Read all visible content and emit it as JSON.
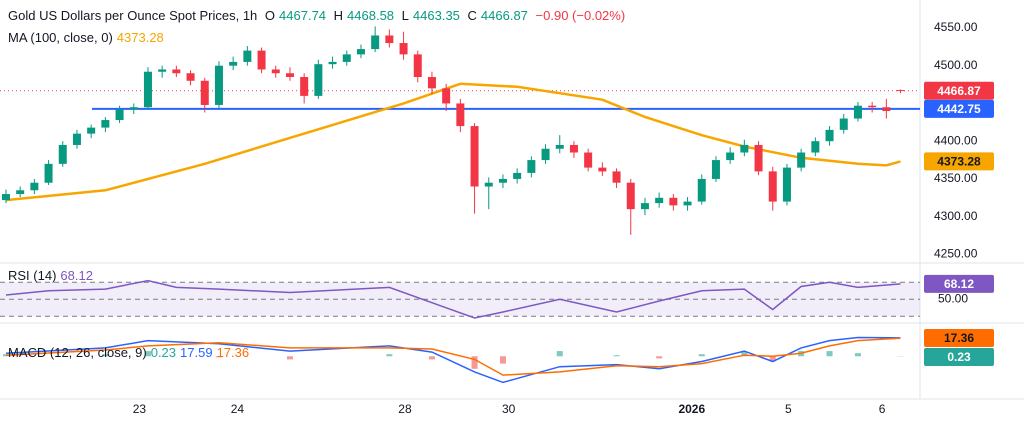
{
  "chart_data": [
    {
      "type": "candlestick",
      "title": "Gold US Dollars per Ounce Spot Prices, 1h",
      "ohlc_labels": [
        "O",
        "H",
        "L",
        "C"
      ],
      "change": "−0.90 (−0.02%)",
      "up_color": "#089981",
      "down_color": "#f23645",
      "open": [
        4322,
        4330,
        4335,
        4345,
        4370,
        4395,
        4410,
        4418,
        4428,
        4442,
        4445,
        4492,
        4495,
        4490,
        4480,
        4448,
        4500,
        4505,
        4520,
        4495,
        4490,
        4485,
        4460,
        4502,
        4505,
        4515,
        4522,
        4540,
        4530,
        4515,
        4485,
        4470,
        4450,
        4420,
        4340,
        4345,
        4350,
        4358,
        4375,
        4390,
        4395,
        4385,
        4365,
        4360,
        4345,
        4310,
        4318,
        4325,
        4315,
        4320,
        4350,
        4375,
        4385,
        4395,
        4360,
        4320,
        4365,
        4385,
        4400,
        4415,
        4430,
        4447,
        4445,
        4467.74
      ],
      "high": [
        4336,
        4340,
        4350,
        4375,
        4400,
        4415,
        4422,
        4432,
        4447,
        4450,
        4498,
        4500,
        4500,
        4494,
        4484,
        4506,
        4512,
        4526,
        4524,
        4500,
        4498,
        4490,
        4508,
        4512,
        4520,
        4528,
        4552,
        4548,
        4545,
        4520,
        4492,
        4476,
        4456,
        4424,
        4352,
        4356,
        4364,
        4380,
        4396,
        4408,
        4400,
        4390,
        4372,
        4364,
        4350,
        4325,
        4332,
        4330,
        4326,
        4356,
        4380,
        4392,
        4402,
        4400,
        4366,
        4370,
        4390,
        4405,
        4420,
        4436,
        4452,
        4452,
        4456,
        4468.58
      ],
      "low": [
        4318,
        4326,
        4330,
        4342,
        4366,
        4390,
        4404,
        4412,
        4424,
        4436,
        4442,
        4484,
        4485,
        4474,
        4438,
        4444,
        4494,
        4500,
        4490,
        4484,
        4480,
        4450,
        4456,
        4496,
        4500,
        4510,
        4518,
        4524,
        4508,
        4478,
        4462,
        4440,
        4412,
        4304,
        4310,
        4338,
        4344,
        4352,
        4370,
        4384,
        4378,
        4360,
        4354,
        4338,
        4276,
        4302,
        4312,
        4308,
        4308,
        4316,
        4346,
        4370,
        4380,
        4355,
        4308,
        4315,
        4360,
        4380,
        4394,
        4410,
        4426,
        4438,
        4430,
        4463.35
      ],
      "close": [
        4330,
        4335,
        4345,
        4370,
        4395,
        4410,
        4418,
        4428,
        4442,
        4445,
        4492,
        4495,
        4490,
        4480,
        4448,
        4500,
        4505,
        4520,
        4495,
        4490,
        4485,
        4460,
        4502,
        4505,
        4515,
        4522,
        4540,
        4530,
        4515,
        4485,
        4470,
        4450,
        4420,
        4340,
        4345,
        4350,
        4358,
        4375,
        4390,
        4395,
        4385,
        4365,
        4360,
        4345,
        4310,
        4318,
        4325,
        4315,
        4320,
        4350,
        4375,
        4385,
        4395,
        4360,
        4320,
        4365,
        4385,
        4400,
        4415,
        4430,
        4447,
        4445,
        4440,
        4466.87
      ],
      "ma": {
        "name": "MA (100, close, 0)",
        "color": "#f7a600",
        "x": [
          0,
          7,
          14,
          21,
          28,
          32,
          36,
          42,
          45,
          49,
          52,
          56,
          60,
          62,
          63
        ],
        "values": [
          4322,
          4335,
          4370,
          4410,
          4450,
          4476,
          4472,
          4455,
          4432,
          4408,
          4393,
          4378,
          4370,
          4368,
          4373.28
        ]
      },
      "level": {
        "value": 4442.75,
        "color": "#2962ff"
      },
      "ylim": [
        4240,
        4587
      ],
      "yticks": [
        {
          "value": 4250,
          "label": "4250.00"
        },
        {
          "value": 4300,
          "label": "4300.00"
        },
        {
          "value": 4350,
          "label": "4350.00"
        },
        {
          "value": 4400,
          "label": "4400.00"
        },
        {
          "value": 4500,
          "label": "4500.00"
        },
        {
          "value": 4550,
          "label": "4550.00"
        }
      ],
      "xlim": [
        -0.42,
        64.37
      ],
      "xticks": [
        {
          "value": 9.4,
          "label": "23"
        },
        {
          "value": 16.3,
          "label": "24"
        },
        {
          "value": 28.1,
          "label": "28"
        },
        {
          "value": 35.4,
          "label": "30"
        },
        {
          "value": 48.3,
          "label": "2026"
        },
        {
          "value": 55.1,
          "label": "5"
        },
        {
          "value": 61.7,
          "label": "6"
        }
      ]
    },
    {
      "type": "line",
      "title": "RSI (14)",
      "color": "#7e57c2",
      "x": [
        0,
        3,
        7,
        10,
        12,
        15,
        20,
        27,
        31,
        33,
        35,
        39,
        43,
        46,
        49,
        52,
        54,
        56,
        58,
        60,
        63
      ],
      "values": [
        55,
        60,
        62,
        72,
        64,
        62,
        58,
        64,
        40,
        28,
        35,
        50,
        35,
        48,
        60,
        62,
        38,
        65,
        70,
        64,
        68.12
      ],
      "levels": [
        70,
        50,
        30
      ],
      "ylim": [
        23.3,
        90.3
      ],
      "yticks": [
        {
          "value": 50,
          "label": "50.00"
        }
      ]
    },
    {
      "type": "macd",
      "title": "MACD (12, 26, close, 9)",
      "x": [
        0,
        7,
        10,
        15,
        20,
        27,
        30,
        33,
        35,
        39,
        43,
        46,
        49,
        52,
        54,
        56,
        58,
        60,
        63
      ],
      "series": [
        {
          "name": "Histogram",
          "color": "#26a69a",
          "values": [
            2,
            2,
            5,
            -1,
            -3,
            2,
            -3,
            -12,
            -7,
            5,
            1,
            -2,
            2,
            4,
            -5,
            5,
            5,
            3,
            0.23
          ]
        },
        {
          "name": "MACD",
          "color": "#2962ff",
          "values": [
            3,
            8,
            15,
            12,
            5,
            10,
            4,
            -15,
            -25,
            -10,
            -8,
            -12,
            -5,
            5,
            -5,
            8,
            15,
            18,
            17.59
          ]
        },
        {
          "name": "Signal",
          "color": "#ff6d00",
          "values": [
            1,
            6,
            10,
            13,
            8,
            8,
            7,
            -3,
            -18,
            -15,
            -9,
            -10,
            -7,
            1,
            0,
            3,
            10,
            15,
            17.36
          ]
        }
      ],
      "ylim": [
        -40,
        30
      ]
    }
  ]
}
